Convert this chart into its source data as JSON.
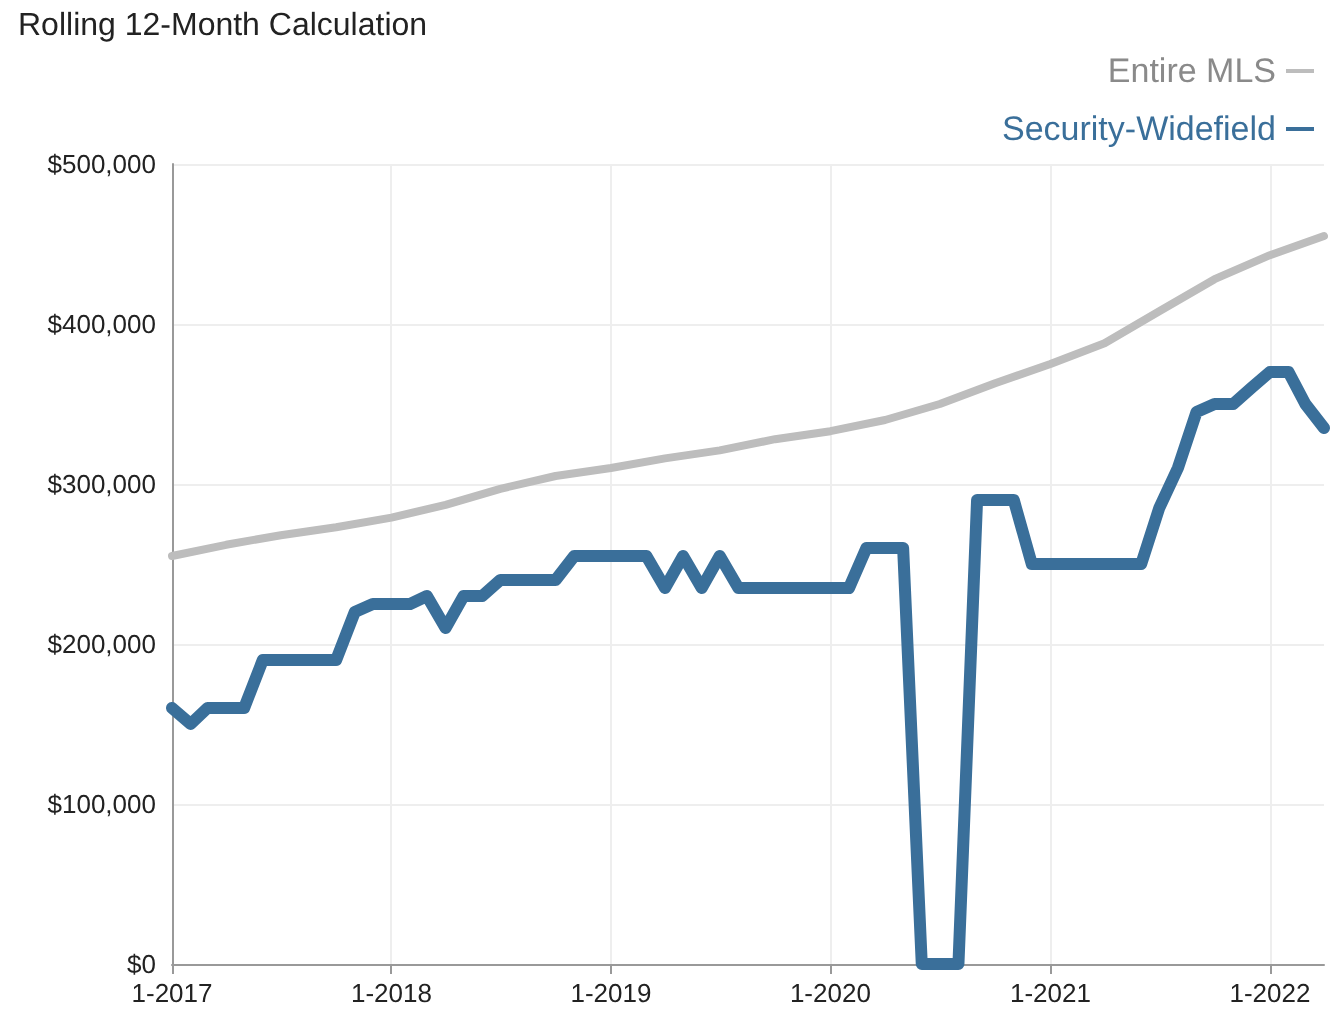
{
  "chart_data": {
    "type": "line",
    "title": "Rolling 12-Month Calculation",
    "xlim": [
      "2017-01",
      "2022-04"
    ],
    "xticks": [
      {
        "value": "2017-01",
        "label": "1-2017"
      },
      {
        "value": "2018-01",
        "label": "1-2018"
      },
      {
        "value": "2019-01",
        "label": "1-2019"
      },
      {
        "value": "2020-01",
        "label": "1-2020"
      },
      {
        "value": "2021-01",
        "label": "1-2021"
      },
      {
        "value": "2022-01",
        "label": "1-2022"
      }
    ],
    "ylim": [
      0,
      500000
    ],
    "yticks": [
      {
        "value": 0,
        "label": "$0"
      },
      {
        "value": 100000,
        "label": "$100,000"
      },
      {
        "value": 200000,
        "label": "$200,000"
      },
      {
        "value": 300000,
        "label": "$300,000"
      },
      {
        "value": 400000,
        "label": "$400,000"
      },
      {
        "value": 500000,
        "label": "$500,000"
      }
    ],
    "grid": true,
    "legend": "top right",
    "marker": "none",
    "line_style": "solid",
    "series": [
      {
        "name": "Entire MLS",
        "color": "#bdbdbd",
        "x": [
          "2017-01",
          "2017-04",
          "2017-07",
          "2017-10",
          "2018-01",
          "2018-04",
          "2018-07",
          "2018-10",
          "2019-01",
          "2019-04",
          "2019-07",
          "2019-10",
          "2020-01",
          "2020-04",
          "2020-07",
          "2020-10",
          "2021-01",
          "2021-04",
          "2021-07",
          "2021-10",
          "2022-01",
          "2022-04"
        ],
        "values": [
          255000,
          262000,
          268000,
          273000,
          279000,
          287000,
          297000,
          305000,
          310000,
          316000,
          321000,
          328000,
          333000,
          340000,
          350000,
          363000,
          375000,
          388000,
          408000,
          428000,
          443000,
          455000
        ]
      },
      {
        "name": "Security-Widefield",
        "color": "#3a6f9a",
        "x": [
          "2017-01",
          "2017-02",
          "2017-03",
          "2017-04",
          "2017-05",
          "2017-06",
          "2017-07",
          "2017-08",
          "2017-09",
          "2017-10",
          "2017-11",
          "2017-12",
          "2018-01",
          "2018-02",
          "2018-03",
          "2018-04",
          "2018-05",
          "2018-06",
          "2018-07",
          "2018-08",
          "2018-09",
          "2018-10",
          "2018-11",
          "2018-12",
          "2019-01",
          "2019-02",
          "2019-03",
          "2019-04",
          "2019-05",
          "2019-06",
          "2019-07",
          "2019-08",
          "2019-09",
          "2019-10",
          "2019-11",
          "2019-12",
          "2020-01",
          "2020-02",
          "2020-03",
          "2020-04",
          "2020-05",
          "2020-06",
          "2020-07",
          "2020-08",
          "2020-09",
          "2020-10",
          "2020-11",
          "2020-12",
          "2021-01",
          "2021-02",
          "2021-03",
          "2021-04",
          "2021-05",
          "2021-06",
          "2021-07",
          "2021-08",
          "2021-09",
          "2021-10",
          "2021-11",
          "2021-12",
          "2022-01",
          "2022-02",
          "2022-03",
          "2022-04"
        ],
        "values": [
          160000,
          150000,
          160000,
          160000,
          160000,
          190000,
          190000,
          190000,
          190000,
          190000,
          220000,
          225000,
          225000,
          225000,
          230000,
          210000,
          230000,
          230000,
          240000,
          240000,
          240000,
          240000,
          255000,
          255000,
          255000,
          255000,
          255000,
          235000,
          255000,
          235000,
          255000,
          235000,
          235000,
          235000,
          235000,
          235000,
          235000,
          235000,
          260000,
          260000,
          260000,
          0,
          0,
          0,
          290000,
          290000,
          290000,
          250000,
          250000,
          250000,
          250000,
          250000,
          250000,
          250000,
          285000,
          310000,
          345000,
          350000,
          350000,
          360000,
          370000,
          370000,
          350000,
          335000
        ]
      }
    ]
  }
}
